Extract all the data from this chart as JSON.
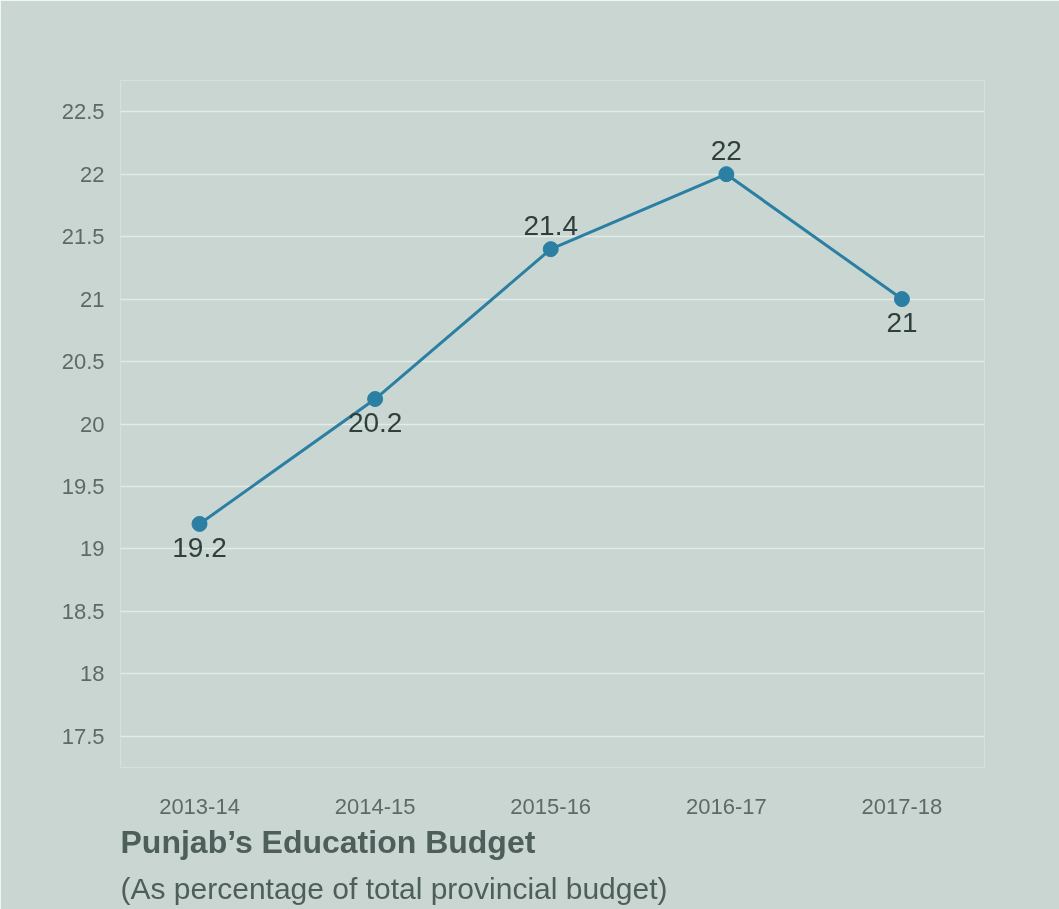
{
  "chart_data": {
    "type": "line",
    "title": "Punjab’s Education Budget",
    "subtitle": "(As percentage of total provincial budget)",
    "categories": [
      "2013-14",
      "2014-15",
      "2015-16",
      "2016-17",
      "2017-18"
    ],
    "values": [
      19.2,
      20.2,
      21.4,
      22,
      21
    ],
    "color": "#2b7fa3",
    "ylim": [
      17.25,
      22.75
    ],
    "yticks": [
      17.5,
      18,
      18.5,
      19,
      19.5,
      20,
      20.5,
      21,
      21.5,
      22,
      22.5
    ],
    "grid": "y",
    "marker": "circle",
    "line_style": "solid",
    "data_labels": true
  }
}
